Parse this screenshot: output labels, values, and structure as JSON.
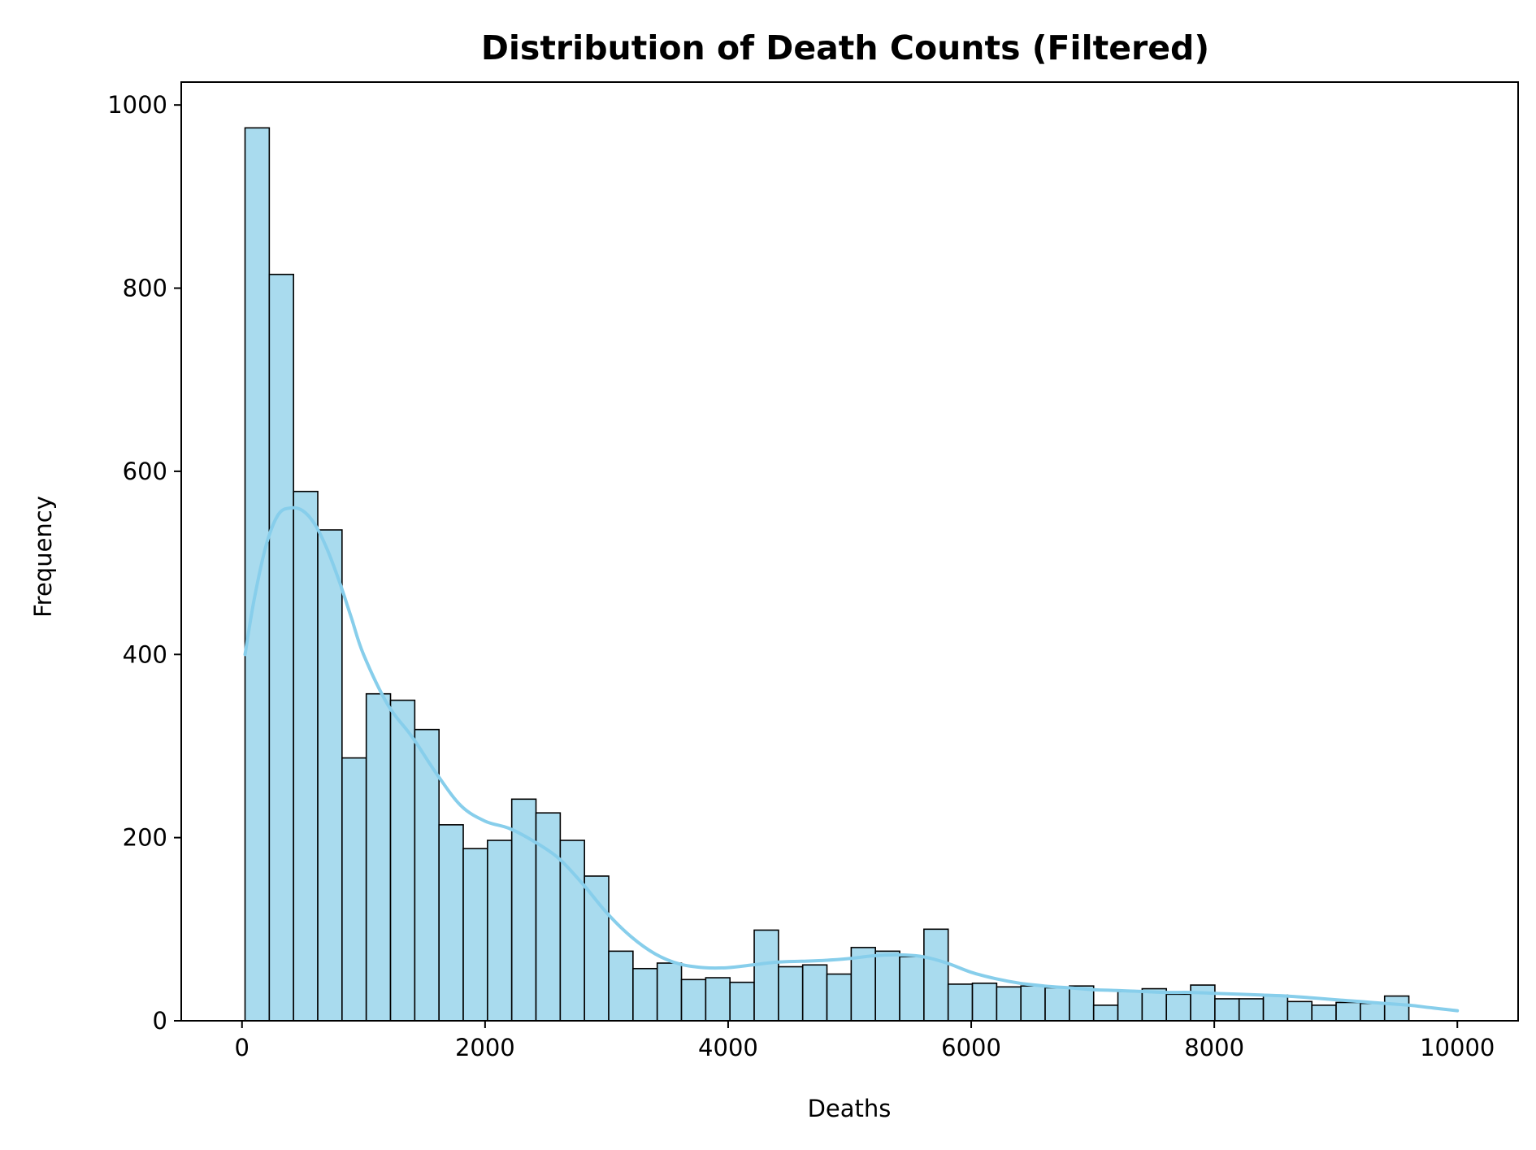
{
  "chart_data": {
    "type": "bar",
    "subtype": "histogram-with-kde",
    "title": "Distribution of Death Counts (Filtered)",
    "xlabel": "Deaths",
    "ylabel": "Frequency",
    "xlim": [
      -500,
      10500
    ],
    "ylim": [
      0,
      1025
    ],
    "x_ticks": [
      0,
      2000,
      4000,
      6000,
      8000,
      10000
    ],
    "y_ticks": [
      0,
      200,
      400,
      600,
      800,
      1000
    ],
    "grid": false,
    "legend": "none",
    "bin_start": 25,
    "bin_width": 199.5,
    "counts": [
      975,
      815,
      578,
      536,
      287,
      357,
      350,
      318,
      214,
      188,
      197,
      242,
      227,
      197,
      158,
      76,
      57,
      63,
      45,
      47,
      42,
      99,
      59,
      61,
      51,
      80,
      76,
      70,
      100,
      40,
      41,
      37,
      38,
      36,
      38,
      17,
      32,
      35,
      29,
      39,
      24,
      24,
      28,
      21,
      17,
      20,
      19,
      27
    ],
    "kde": {
      "x": [
        25,
        100,
        200,
        300,
        400,
        500,
        600,
        700,
        800,
        900,
        1000,
        1200,
        1400,
        1600,
        1800,
        2000,
        2200,
        2400,
        2600,
        2800,
        3000,
        3200,
        3400,
        3600,
        3800,
        4000,
        4200,
        4400,
        4600,
        4800,
        5000,
        5200,
        5400,
        5600,
        5800,
        6000,
        6200,
        6400,
        6600,
        6800,
        7000,
        7200,
        7400,
        7600,
        7800,
        8000,
        8200,
        8400,
        8600,
        8800,
        9000,
        9200,
        9400,
        9600,
        9800,
        10000
      ],
      "y": [
        400,
        460,
        520,
        553,
        560,
        557,
        542,
        515,
        480,
        440,
        400,
        345,
        310,
        270,
        235,
        218,
        210,
        196,
        178,
        150,
        118,
        92,
        73,
        62,
        58,
        58,
        61,
        64,
        65,
        66,
        68,
        71,
        72,
        70,
        63,
        53,
        46,
        41,
        38,
        36,
        34,
        33,
        32,
        31,
        31,
        30,
        29,
        28,
        27,
        25,
        23,
        21,
        19,
        17,
        14,
        11
      ]
    },
    "colors": {
      "bar_fill": "#a9dbee",
      "bar_edge": "#000000",
      "kde_line": "#87ceeb"
    }
  }
}
